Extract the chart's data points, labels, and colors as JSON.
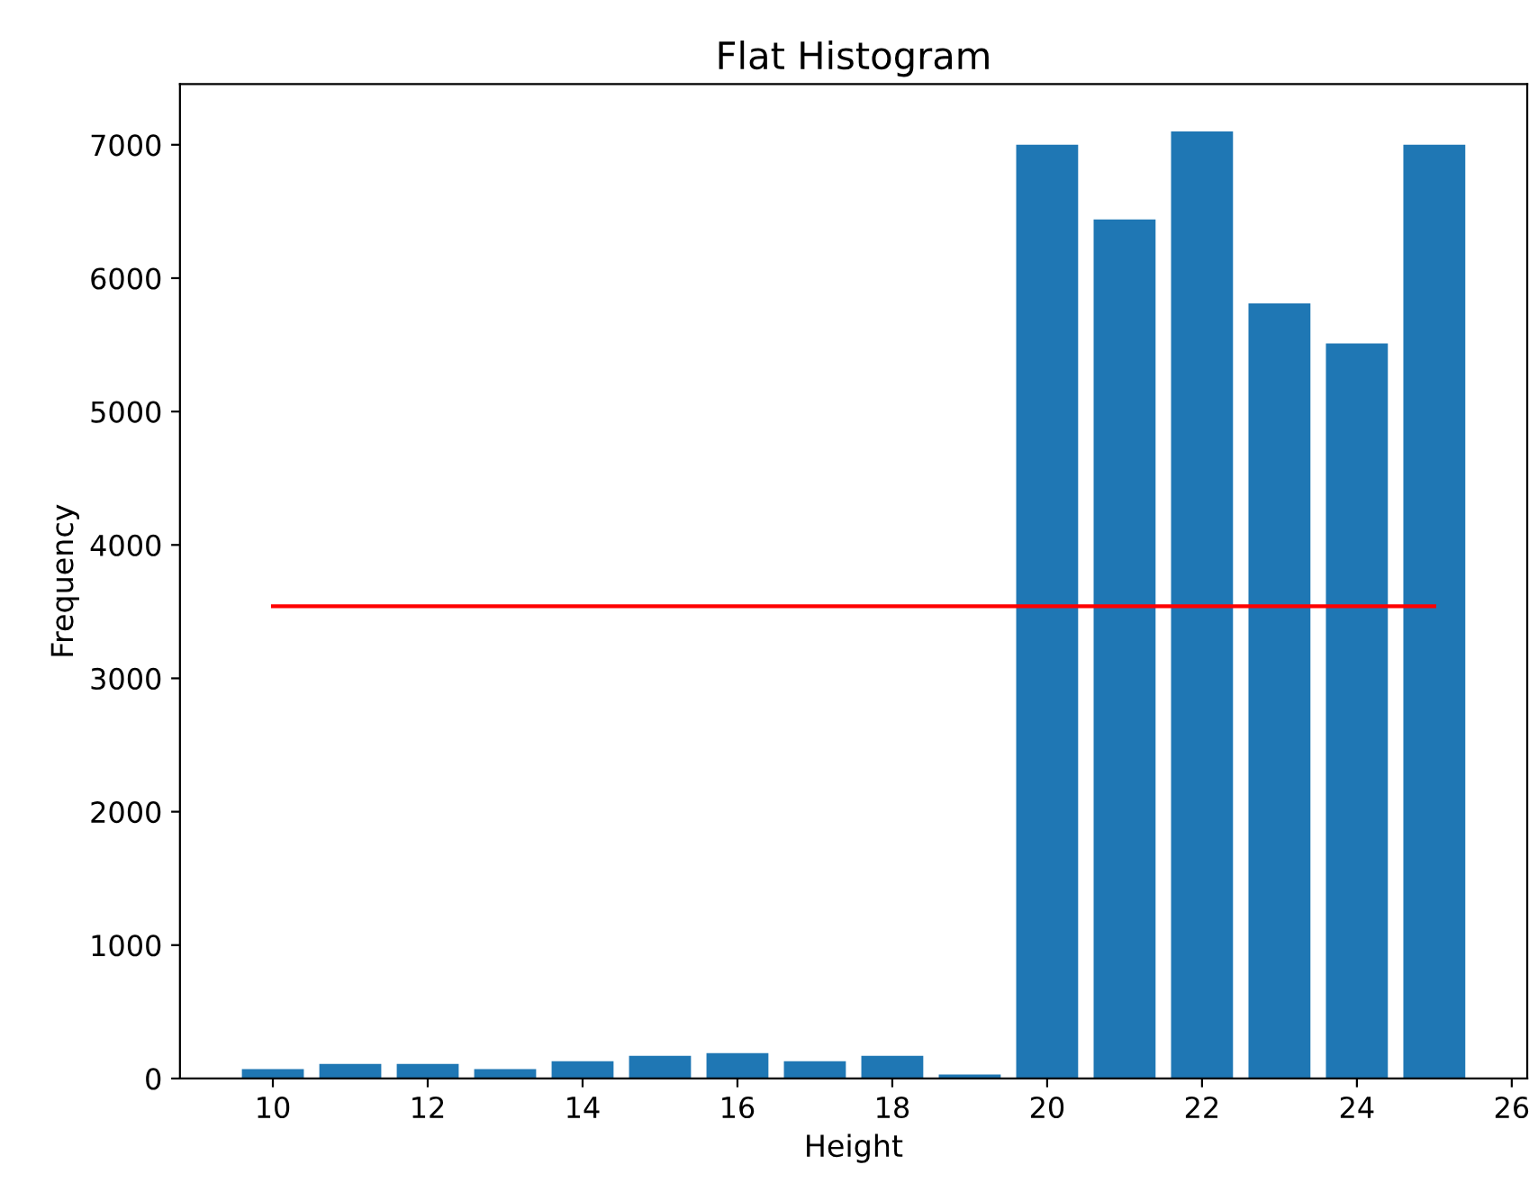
{
  "chart_data": {
    "type": "bar",
    "title": "Flat Histogram",
    "xlabel": "Height",
    "ylabel": "Frequency",
    "x": [
      10,
      11,
      12,
      13,
      14,
      15,
      16,
      17,
      18,
      19,
      20,
      21,
      22,
      23,
      24,
      25
    ],
    "series": [
      {
        "color": "#1f77b4",
        "values": [
          70,
          110,
          110,
          70,
          130,
          170,
          190,
          130,
          170,
          30,
          7000,
          6440,
          7100,
          5810,
          5510,
          7000
        ]
      },
      {
        "type": "line",
        "color": "#ff0000",
        "x": [
          10,
          25
        ],
        "values": [
          3540,
          3540
        ]
      }
    ],
    "xlim": [
      8.8,
      26.2
    ],
    "xticks": [
      10,
      12,
      14,
      16,
      18,
      20,
      22,
      24,
      26
    ],
    "ylim": [
      0,
      7455
    ],
    "yticks": [
      0,
      1000,
      2000,
      3000,
      4000,
      5000,
      6000,
      7000
    ],
    "grid": false,
    "legend": false
  }
}
